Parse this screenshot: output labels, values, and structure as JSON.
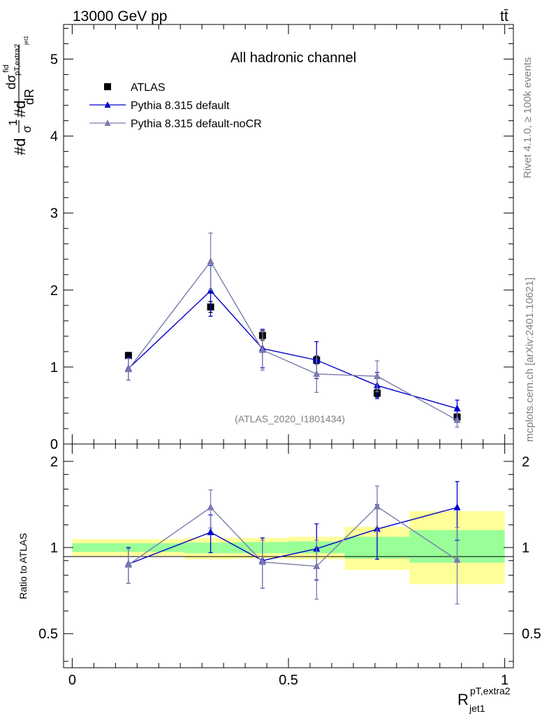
{
  "header": {
    "left": "13000 GeV pp",
    "right": "tt̄"
  },
  "side": {
    "rivet": "Rivet 4.1.0, ≥ 100k events",
    "mcplots": "mcplots.cern.ch [arXiv:2401.10621]"
  },
  "colors": {
    "atlas": "#000000",
    "pythia_default": "#0000cc",
    "pythia_nocr": "#7a7aae",
    "band_stat": "#99ff99",
    "band_total": "#ffff99"
  },
  "chart_data": [
    {
      "type": "line",
      "title": "All hadronic channel",
      "analysis_label": "(ATLAS_2020_I1801434)",
      "ylabel_main": "#d 1/σ #d dσ^fid / d p^{pT,extra2}_{jet1} dR",
      "ylabel_parts": [
        "#d",
        "1",
        "σ",
        "#d",
        "dσ",
        "fid",
        "pT,extra2",
        "jet1",
        "dR"
      ],
      "ylim": [
        0,
        5.45
      ],
      "yticks": [
        0,
        1,
        2,
        3,
        4,
        5
      ],
      "ytick_labels": [
        "0",
        "1",
        "2",
        "3",
        "4",
        "5"
      ],
      "xlim": [
        -0.02,
        1.02
      ],
      "bins": [
        {
          "lo": 0.0,
          "hi": 0.26
        },
        {
          "lo": 0.26,
          "hi": 0.38
        },
        {
          "lo": 0.38,
          "hi": 0.5
        },
        {
          "lo": 0.5,
          "hi": 0.63
        },
        {
          "lo": 0.63,
          "hi": 0.78
        },
        {
          "lo": 0.78,
          "hi": 1.0
        }
      ],
      "legend_position": "top-left",
      "series": [
        {
          "name": "ATLAS",
          "marker": "square",
          "x": [
            0.13,
            0.32,
            0.44,
            0.565,
            0.705,
            0.89
          ],
          "y": [
            1.15,
            1.78,
            1.41,
            1.09,
            0.66,
            0.35
          ],
          "err": [
            0.04,
            0.07,
            0.06,
            0.05,
            0.05,
            0.03
          ]
        },
        {
          "name": "Pythia 8.315 default",
          "marker": "triangle",
          "x": [
            0.13,
            0.32,
            0.44,
            0.565,
            0.705,
            0.89
          ],
          "y": [
            0.98,
            1.99,
            1.24,
            1.09,
            0.76,
            0.46
          ],
          "err": [
            0.15,
            0.33,
            0.25,
            0.24,
            0.17,
            0.11
          ]
        },
        {
          "name": "Pythia 8.315 default-noCR",
          "marker": "triangle",
          "x": [
            0.13,
            0.32,
            0.44,
            0.565,
            0.705,
            0.89
          ],
          "y": [
            0.97,
            2.37,
            1.22,
            0.91,
            0.88,
            0.31
          ],
          "err": [
            0.14,
            0.37,
            0.26,
            0.24,
            0.2,
            0.09
          ]
        }
      ]
    },
    {
      "type": "line",
      "ylabel": "Ratio to ATLAS",
      "xlabel": "R^{pT,extra2}_{jet1}",
      "xlabel_main": "R",
      "xlabel_sup": "pT,extra2",
      "xlabel_sub": "jet1",
      "ylim": [
        0.38,
        2.3
      ],
      "yticks": [
        0.5,
        1,
        2
      ],
      "ytick_labels": [
        "0.5",
        "1",
        "2"
      ],
      "xticks": [
        0,
        0.5,
        1
      ],
      "xtick_labels": [
        "0",
        "0.5",
        "1"
      ],
      "xlim": [
        -0.02,
        1.02
      ],
      "bands": [
        {
          "lo": 0.0,
          "hi": 0.26,
          "stat": [
            0.965,
            1.035
          ],
          "total": [
            0.935,
            1.07
          ]
        },
        {
          "lo": 0.26,
          "hi": 0.38,
          "stat": [
            0.955,
            1.04
          ],
          "total": [
            0.91,
            1.08
          ]
        },
        {
          "lo": 0.38,
          "hi": 0.5,
          "stat": [
            0.955,
            1.045
          ],
          "total": [
            0.915,
            1.08
          ]
        },
        {
          "lo": 0.5,
          "hi": 0.63,
          "stat": [
            0.955,
            1.05
          ],
          "total": [
            0.91,
            1.09
          ]
        },
        {
          "lo": 0.63,
          "hi": 0.78,
          "stat": [
            0.915,
            1.09
          ],
          "total": [
            0.835,
            1.18
          ]
        },
        {
          "lo": 0.78,
          "hi": 1.0,
          "stat": [
            0.885,
            1.15
          ],
          "total": [
            0.745,
            1.34
          ]
        }
      ],
      "series": [
        {
          "name": "Pythia 8.315 default",
          "x": [
            0.13,
            0.32,
            0.44,
            0.565,
            0.705,
            0.89
          ],
          "y": [
            0.875,
            1.13,
            0.9,
            0.99,
            1.16,
            1.38
          ],
          "err": [
            0.125,
            0.17,
            0.18,
            0.22,
            0.25,
            0.32
          ]
        },
        {
          "name": "Pythia 8.315 default-noCR",
          "x": [
            0.13,
            0.32,
            0.44,
            0.565,
            0.705,
            0.89
          ],
          "y": [
            0.87,
            1.38,
            0.89,
            0.86,
            1.39,
            0.905
          ],
          "err": [
            0.12,
            0.21,
            0.17,
            0.2,
            0.25,
            0.27
          ]
        }
      ]
    }
  ]
}
